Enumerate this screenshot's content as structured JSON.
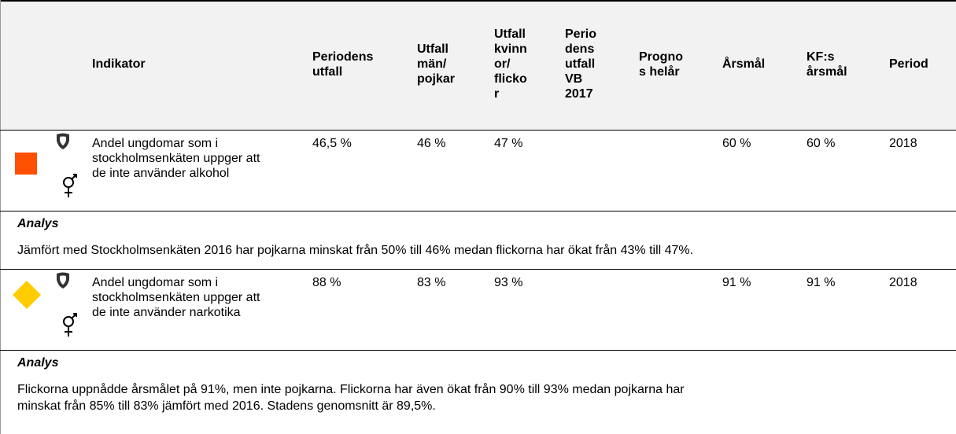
{
  "table": {
    "columns": {
      "indikator": [
        "Indikator"
      ],
      "periodens_utfall": [
        "Periodens",
        "utfall"
      ],
      "utfall_man": [
        "Utfall",
        "män/",
        "pojkar"
      ],
      "utfall_kvinnor": [
        "Utfall",
        "kvinn",
        "or/",
        "flicko",
        "r"
      ],
      "vb_2017": [
        "Perio",
        "dens",
        "utfall",
        "VB",
        "2017"
      ],
      "prognos": [
        "Progno",
        "s helår"
      ],
      "arsmal": [
        "Årsmål"
      ],
      "kf_arsmal": [
        "KF:s",
        "årsmål"
      ],
      "period": [
        "Period"
      ]
    },
    "rows": [
      {
        "status": {
          "shape": "square",
          "color": "#ff4f00"
        },
        "indikator": "Andel ungdomar som i stockholmsenkäten uppger att de inte använder alkohol",
        "periodens_utfall": "46,5 %",
        "utfall_man": "46 %",
        "utfall_kvinnor": "47 %",
        "arsmal": "60 %",
        "kf_arsmal": "60 %",
        "period": "2018",
        "analys": {
          "title": "Analys",
          "lines": [
            "Jämfört med Stockholmsenkäten 2016 har pojkarna minskat från 50% till 46% medan flickorna har ökat från 43% till 47%."
          ]
        }
      },
      {
        "status": {
          "shape": "diamond",
          "color": "#ffcc00"
        },
        "indikator": "Andel ungdomar som i stockholmsenkäten uppger att de inte använder narkotika",
        "periodens_utfall": "88 %",
        "utfall_man": "83 %",
        "utfall_kvinnor": "93 %",
        "arsmal": "91 %",
        "kf_arsmal": "91 %",
        "period": "2018",
        "analys": {
          "title": "Analys",
          "lines": [
            "Flickorna uppnådde årsmålet på 91%, men inte pojkarna. Flickorna har även ökat från 90% till 93% medan pojkarna har",
            "minskat från 85% till 83% jämfört med 2016. Stadens genomsnitt är 89,5%."
          ]
        }
      }
    ]
  }
}
